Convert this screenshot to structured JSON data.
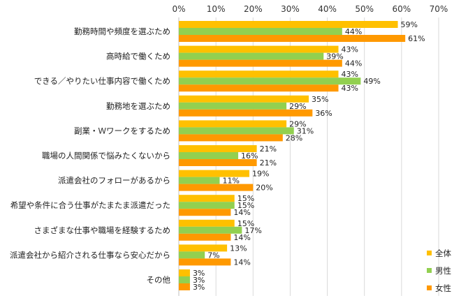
{
  "chart_data": {
    "type": "bar",
    "orientation": "horizontal",
    "title": "",
    "xlabel": "",
    "ylabel": "",
    "xlim": [
      0,
      70
    ],
    "tick_values": [
      0,
      10,
      20,
      30,
      40,
      50,
      60,
      70
    ],
    "tick_labels": [
      "0%",
      "10%",
      "20%",
      "30%",
      "40%",
      "50%",
      "60%",
      "70%"
    ],
    "value_suffix": "%",
    "grid": true,
    "legend_position": "bottom-right",
    "categories": [
      "勤務時間や頻度を選ぶため",
      "高時給で働くため",
      "できる／やりたい仕事内容で働くため",
      "勤務地を選ぶため",
      "副業・Ｗワークをするため",
      "職場の人間関係で悩みたくないから",
      "派遣会社のフォローがあるから",
      "希望や条件に合う仕事がたまたま派遣だった",
      "さまざまな仕事や職場を経験するため",
      "派遣会社から紹介される仕事なら安心だから",
      "その他"
    ],
    "series": [
      {
        "name": "全体",
        "color": "#FFC000",
        "values": [
          59,
          43,
          43,
          35,
          29,
          21,
          19,
          15,
          15,
          13,
          3
        ]
      },
      {
        "name": "男性",
        "color": "#92D050",
        "values": [
          44,
          39,
          49,
          29,
          31,
          16,
          11,
          15,
          17,
          7,
          3
        ]
      },
      {
        "name": "女性",
        "color": "#FF9900",
        "values": [
          61,
          44,
          43,
          36,
          28,
          21,
          20,
          14,
          14,
          14,
          3
        ]
      }
    ]
  }
}
